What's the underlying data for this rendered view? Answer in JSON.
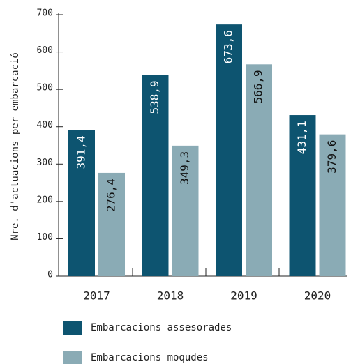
{
  "chart_data": {
    "type": "bar",
    "ylabel": "Nre. d'actuacions per embarcació",
    "categories": [
      "2017",
      "2018",
      "2019",
      "2020"
    ],
    "series": [
      {
        "name": "Embarcacions assesorades",
        "color": "#0d5470",
        "values": [
          391.4,
          538.9,
          673.6,
          431.1
        ],
        "value_labels": [
          "391,4",
          "538,9",
          "673,6",
          "431,1"
        ]
      },
      {
        "name": "Embarcacions moqudes",
        "color": "#8aabb5",
        "values": [
          276.4,
          349.3,
          566.9,
          379.6
        ],
        "value_labels": [
          "276,4",
          "349,3",
          "566,9",
          "379,6"
        ]
      }
    ],
    "ylim": [
      0,
      700
    ],
    "yticks": [
      0,
      100,
      200,
      300,
      400,
      500,
      600,
      700
    ]
  }
}
